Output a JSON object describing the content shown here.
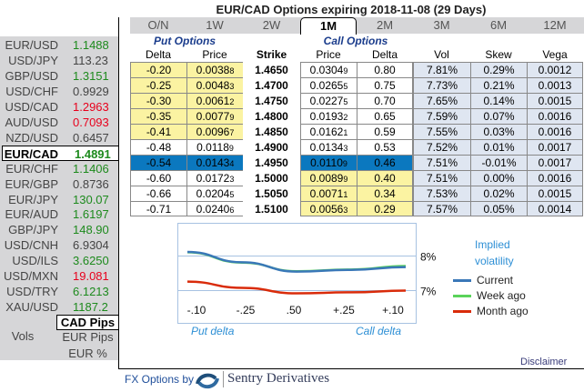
{
  "title": "EUR/CAD Options expiring 2018-11-08 (29 Days)",
  "sidebar": {
    "pairs": [
      {
        "name": "EUR/USD",
        "value": "1.1488",
        "dir": "up"
      },
      {
        "name": "USD/JPY",
        "value": "113.23",
        "dir": "fl"
      },
      {
        "name": "GBP/USD",
        "value": "1.3151",
        "dir": "up"
      },
      {
        "name": "USD/CHF",
        "value": "0.9929",
        "dir": "fl"
      },
      {
        "name": "USD/CAD",
        "value": "1.2963",
        "dir": "dn"
      },
      {
        "name": "AUD/USD",
        "value": "0.7093",
        "dir": "dn"
      },
      {
        "name": "NZD/USD",
        "value": "0.6457",
        "dir": "fl"
      },
      {
        "name": "EUR/CAD",
        "value": "1.4891",
        "dir": "up",
        "selected": true
      },
      {
        "name": "EUR/CHF",
        "value": "1.1406",
        "dir": "up"
      },
      {
        "name": "EUR/GBP",
        "value": "0.8736",
        "dir": "fl"
      },
      {
        "name": "EUR/JPY",
        "value": "130.07",
        "dir": "up"
      },
      {
        "name": "EUR/AUD",
        "value": "1.6197",
        "dir": "up"
      },
      {
        "name": "GBP/JPY",
        "value": "148.90",
        "dir": "up"
      },
      {
        "name": "USD/CNH",
        "value": "6.9304",
        "dir": "fl"
      },
      {
        "name": "USD/ILS",
        "value": "3.6250",
        "dir": "up"
      },
      {
        "name": "USD/MXN",
        "value": "19.081",
        "dir": "dn"
      },
      {
        "name": "USD/TRY",
        "value": "6.1213",
        "dir": "up"
      },
      {
        "name": "XAU/USD",
        "value": "1187.2",
        "dir": "up"
      }
    ],
    "units_label": "Vols",
    "units": [
      "CAD Pips",
      "EUR Pips",
      "EUR %"
    ],
    "selected_unit": "CAD Pips"
  },
  "tabs": [
    "O/N",
    "1W",
    "2W",
    "1M",
    "2M",
    "3M",
    "6M",
    "12M"
  ],
  "active_tab": "1M",
  "groups": {
    "put": "Put Options",
    "call": "Call Options"
  },
  "headers": [
    "Delta",
    "Price",
    "Strike",
    "Price",
    "Delta",
    "Vol",
    "Skew",
    "Vega"
  ],
  "rows": [
    [
      "-0.20",
      "0.00388",
      "1.4650",
      "0.03049",
      "0.80",
      "7.81%",
      "0.29%",
      "0.0012"
    ],
    [
      "-0.25",
      "0.00483",
      "1.4700",
      "0.02655",
      "0.75",
      "7.73%",
      "0.21%",
      "0.0013"
    ],
    [
      "-0.30",
      "0.00612",
      "1.4750",
      "0.02275",
      "0.70",
      "7.65%",
      "0.14%",
      "0.0015"
    ],
    [
      "-0.35",
      "0.00779",
      "1.4800",
      "0.01932",
      "0.65",
      "7.59%",
      "0.07%",
      "0.0016"
    ],
    [
      "-0.41",
      "0.00967",
      "1.4850",
      "0.01621",
      "0.59",
      "7.55%",
      "0.03%",
      "0.0016"
    ],
    [
      "-0.48",
      "0.01189",
      "1.4900",
      "0.01343",
      "0.53",
      "7.52%",
      "0.01%",
      "0.0017"
    ],
    [
      "-0.54",
      "0.01434",
      "1.4950",
      "0.01109",
      "0.46",
      "7.51%",
      "-0.01%",
      "0.0017"
    ],
    [
      "-0.60",
      "0.01723",
      "1.5000",
      "0.00899",
      "0.40",
      "7.51%",
      "0.00%",
      "0.0016"
    ],
    [
      "-0.66",
      "0.02045",
      "1.5050",
      "0.00711",
      "0.34",
      "7.53%",
      "0.02%",
      "0.0015"
    ],
    [
      "-0.71",
      "0.02406",
      "1.5100",
      "0.00563",
      "0.29",
      "7.57%",
      "0.05%",
      "0.0014"
    ]
  ],
  "atm_row": 6,
  "colors": {
    "itm": "#fbf3a2",
    "atm": "#0b78bf",
    "vol": "#dfe6f1",
    "up": "#1d8a1d",
    "down": "#e8001c"
  },
  "chart_data": {
    "type": "line",
    "categories": [
      "-.10",
      "-.25",
      ".50",
      "+.25",
      "+.10"
    ],
    "yticks": [
      "8%",
      "7%"
    ],
    "ylim": [
      6.5,
      8.5
    ],
    "title": "Implied volatility",
    "xlabel_left": "Put delta",
    "xlabel_right": "Call delta",
    "series": [
      {
        "name": "Current",
        "color": "#3a78b8",
        "values": [
          8.12,
          7.82,
          7.55,
          7.6,
          7.68
        ]
      },
      {
        "name": "Week ago",
        "color": "#5ad35a",
        "values": [
          8.11,
          7.81,
          7.56,
          7.61,
          7.71
        ]
      },
      {
        "name": "Month ago",
        "color": "#d92b0a",
        "values": [
          7.26,
          7.08,
          6.92,
          6.95,
          7.0
        ]
      }
    ],
    "legend": "right"
  },
  "disclaimer": "Disclaimer",
  "footer": {
    "prefix": "FX Options by",
    "brand": "Sentry Derivatives"
  }
}
